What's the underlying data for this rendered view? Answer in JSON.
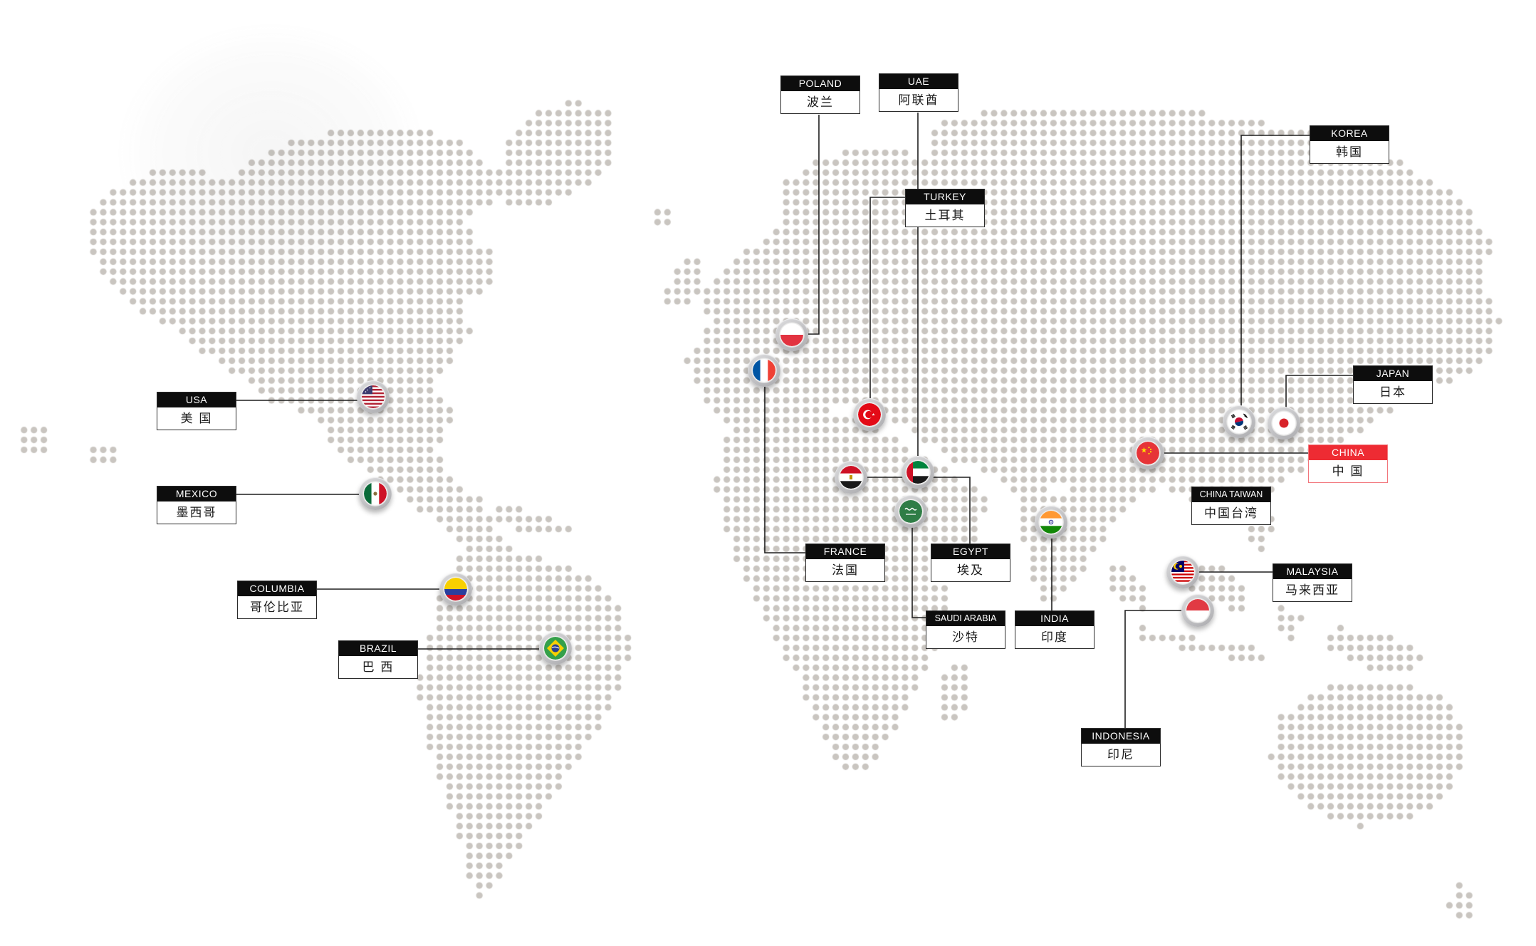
{
  "map": {
    "description": "dotted world map",
    "dot_color": "#c9c5c0",
    "accent_red": "#ee2b33",
    "label_header_bg": "#0d0d0d",
    "label_header_text": "#ffffff",
    "label_body_bg": "#ffffff",
    "label_body_text": "#1a1a1a"
  },
  "countries": [
    {
      "en": "USA",
      "zh": "美 国",
      "flag": "us"
    },
    {
      "en": "MEXICO",
      "zh": "墨西哥",
      "flag": "mx"
    },
    {
      "en": "COLUMBIA",
      "zh": "哥伦比亚",
      "flag": "co"
    },
    {
      "en": "BRAZIL",
      "zh": "巴 西",
      "flag": "br"
    },
    {
      "en": "POLAND",
      "zh": "波兰",
      "flag": "pl"
    },
    {
      "en": "FRANCE",
      "zh": "法国",
      "flag": "fr"
    },
    {
      "en": "TURKEY",
      "zh": "土耳其",
      "flag": "tr"
    },
    {
      "en": "EGYPT",
      "zh": "埃及",
      "flag": "eg"
    },
    {
      "en": "UAE",
      "zh": "阿联酋",
      "flag": "ae"
    },
    {
      "en": "SAUDI ARABIA",
      "zh": "沙特",
      "flag": "sa"
    },
    {
      "en": "INDIA",
      "zh": "印度",
      "flag": "in"
    },
    {
      "en": "CHINA",
      "zh": "中 国",
      "flag": "cn"
    },
    {
      "en": "CHINA TAIWAN",
      "zh": "中国台湾",
      "flag": ""
    },
    {
      "en": "KOREA",
      "zh": "韩国",
      "flag": "kr"
    },
    {
      "en": "JAPAN",
      "zh": "日本",
      "flag": "jp"
    },
    {
      "en": "MALAYSIA",
      "zh": "马来西亚",
      "flag": "my"
    },
    {
      "en": "INDONESIA",
      "zh": "印尼",
      "flag": "id"
    }
  ]
}
